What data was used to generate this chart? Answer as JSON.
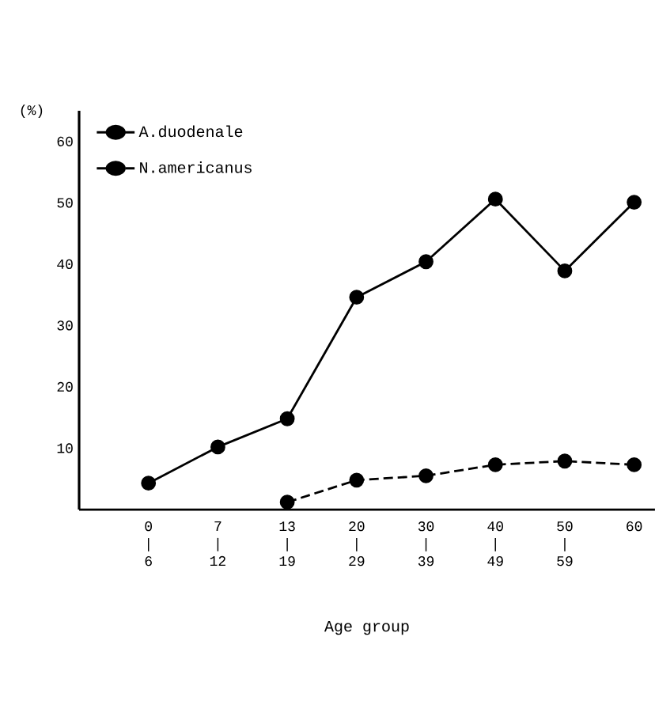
{
  "chart_data": {
    "type": "line",
    "ylabel": "(%)",
    "xlabel": "Age group",
    "categories": [
      "0 | 6",
      "7 | 12",
      "13 | 19",
      "20 | 29",
      "30 | 39",
      "40 | 49",
      "50 | 59",
      "60"
    ],
    "series": [
      {
        "name": "A.duodenale",
        "color": "#000000",
        "line_style": "solid",
        "values": [
          4.3,
          10.2,
          14.8,
          34.6,
          40.4,
          50.6,
          38.9,
          50.1
        ]
      },
      {
        "name": "N.americanus",
        "color": "#000000",
        "line_style": "dashed",
        "values": [
          null,
          null,
          1.2,
          4.8,
          5.5,
          7.3,
          7.9,
          7.3
        ]
      }
    ],
    "ylim": [
      0,
      65
    ],
    "yticks": [
      10,
      20,
      30,
      40,
      50,
      60
    ],
    "marker": "circle",
    "legend": "top left",
    "grid": false
  }
}
